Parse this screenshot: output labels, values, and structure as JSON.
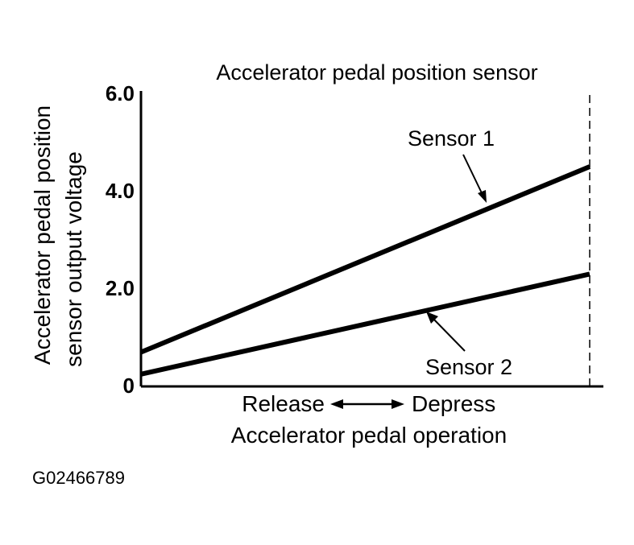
{
  "chart_data": {
    "type": "line",
    "title": "Accelerator pedal position sensor",
    "ylabel_lines": [
      "Accelerator pedal position",
      "sensor output voltage"
    ],
    "xlabel": "Accelerator pedal operation",
    "x_range_labels": {
      "start": "Release",
      "end": "Depress"
    },
    "y_ticks": [
      "0",
      "2.0",
      "4.0",
      "6.0"
    ],
    "ylim": [
      0,
      6
    ],
    "xlim": [
      0,
      1
    ],
    "grid": false,
    "full_travel_marker": "dashed vertical line at pedal fully depressed",
    "series": [
      {
        "name": "Sensor 1",
        "x": [
          0,
          1
        ],
        "values": [
          0.7,
          4.5
        ]
      },
      {
        "name": "Sensor 2",
        "x": [
          0,
          1
        ],
        "values": [
          0.25,
          2.3
        ]
      }
    ]
  },
  "figure_id": "G02466789"
}
